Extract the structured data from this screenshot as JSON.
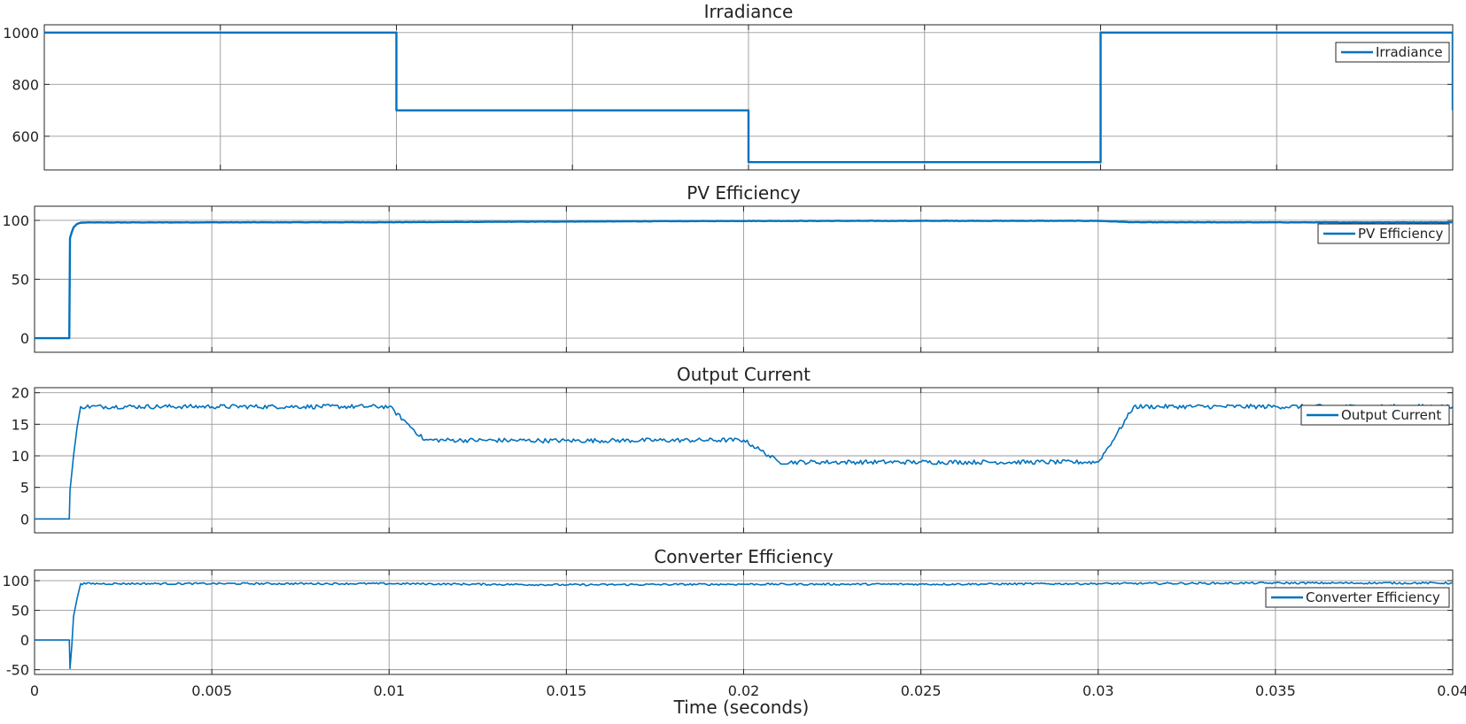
{
  "figure": {
    "xlabel": "Time (seconds)"
  },
  "colors": {
    "series": "#0072BD",
    "grid": "#9a9a9a",
    "axes": "#262626"
  },
  "chart_data": [
    {
      "type": "line",
      "title": "Irradiance",
      "xlim": [
        0,
        0.04
      ],
      "ylim": [
        470,
        1030
      ],
      "yticks": [
        600,
        800,
        1000
      ],
      "xticks": [
        0,
        0.005,
        0.01,
        0.015,
        0.02,
        0.025,
        0.03,
        0.035,
        0.04
      ],
      "grid": true,
      "legend_position": "top-right",
      "series": [
        {
          "name": "Irradiance",
          "x": [
            0,
            0.01,
            0.01,
            0.02,
            0.02,
            0.03,
            0.03,
            0.04,
            0.04
          ],
          "y": [
            1000,
            1000,
            700,
            700,
            500,
            500,
            1000,
            1000,
            700
          ]
        }
      ]
    },
    {
      "type": "line",
      "title": "PV Efficiency",
      "xlim": [
        0,
        0.04
      ],
      "ylim": [
        -12,
        112
      ],
      "yticks": [
        0,
        50,
        100
      ],
      "xticks": [
        0,
        0.005,
        0.01,
        0.015,
        0.02,
        0.025,
        0.03,
        0.035,
        0.04
      ],
      "grid": true,
      "legend_position": "top-right",
      "series": [
        {
          "name": "PV Efficiency",
          "x": [
            0,
            0.00098,
            0.001,
            0.00105,
            0.0011,
            0.0012,
            0.0013,
            0.0015,
            0.002,
            0.005,
            0.01,
            0.015,
            0.02,
            0.025,
            0.03,
            0.031,
            0.035,
            0.04
          ],
          "y": [
            0,
            0,
            85,
            90,
            94,
            97,
            98,
            98.2,
            98.2,
            98.3,
            98.4,
            99,
            99.5,
            99.6,
            99.6,
            98.4,
            98.3,
            98.3
          ]
        }
      ]
    },
    {
      "type": "line",
      "title": "Output Current",
      "xlim": [
        0,
        0.04
      ],
      "ylim": [
        -2.2,
        20.8
      ],
      "yticks": [
        0,
        5,
        10,
        15,
        20
      ],
      "xticks": [
        0,
        0.005,
        0.01,
        0.015,
        0.02,
        0.025,
        0.03,
        0.035,
        0.04
      ],
      "grid": true,
      "legend_position": "top-right",
      "series": [
        {
          "name": "Output Current",
          "x": [
            0,
            0.00098,
            0.001,
            0.0011,
            0.0012,
            0.0013,
            0.005,
            0.01,
            0.0105,
            0.011,
            0.015,
            0.02,
            0.0205,
            0.021,
            0.025,
            0.03,
            0.0305,
            0.031,
            0.035,
            0.04
          ],
          "y": [
            0,
            0,
            4.5,
            10,
            14.5,
            17.8,
            17.8,
            17.8,
            15.2,
            12.5,
            12.4,
            12.5,
            10.8,
            9,
            9,
            9,
            13.2,
            17.8,
            17.8,
            17.8
          ]
        }
      ]
    },
    {
      "type": "line",
      "title": "Converter Efficiency",
      "xlim": [
        0,
        0.04
      ],
      "ylim": [
        -58,
        118
      ],
      "yticks": [
        -50,
        0,
        50,
        100
      ],
      "xticks": [
        0,
        0.005,
        0.01,
        0.015,
        0.02,
        0.025,
        0.03,
        0.035,
        0.04
      ],
      "xticklabels": [
        "0",
        "0.005",
        "0.01",
        "0.015",
        "0.02",
        "0.025",
        "0.03",
        "0.035",
        "0.04"
      ],
      "grid": true,
      "legend_position": "top-right",
      "series": [
        {
          "name": "Converter Efficiency",
          "x": [
            0,
            0.00098,
            0.001,
            0.00105,
            0.0011,
            0.0012,
            0.0013,
            0.005,
            0.01,
            0.015,
            0.02,
            0.025,
            0.03,
            0.035,
            0.04
          ],
          "y": [
            0,
            0,
            -48,
            -10,
            40,
            70,
            95,
            95,
            95,
            93,
            94,
            94,
            95,
            96,
            96
          ]
        }
      ]
    }
  ]
}
